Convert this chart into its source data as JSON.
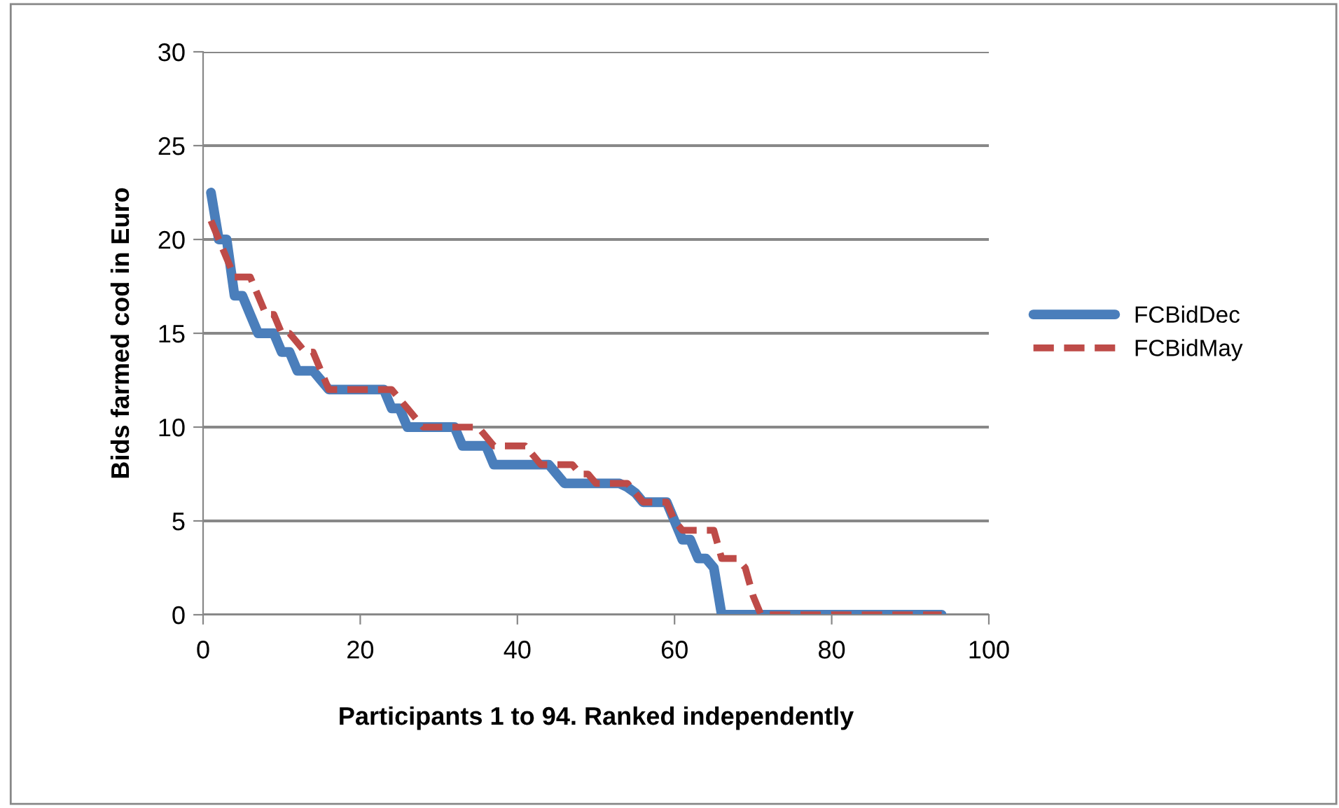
{
  "chart_data": {
    "type": "line",
    "xlabel": "Participants 1 to 94. Ranked independently",
    "ylabel": "Bids farmed cod in Euro",
    "xlim": [
      0,
      100
    ],
    "xticks": [
      0,
      20,
      40,
      60,
      80,
      100
    ],
    "ylim": [
      0,
      30
    ],
    "yticks": [
      0,
      5,
      10,
      15,
      20,
      25,
      30
    ],
    "grid": "y",
    "legend": "right",
    "marker": "none",
    "series": [
      {
        "name": "FCBidDec",
        "color": "#4a7ebb",
        "line_style": "solid",
        "x": [
          1,
          2,
          3,
          4,
          5,
          6,
          7,
          9,
          10,
          11,
          12,
          14,
          15,
          16,
          23,
          24,
          25,
          26,
          32,
          33,
          36,
          37,
          44,
          45,
          46,
          53,
          54,
          55,
          56,
          59,
          60,
          61,
          62,
          63,
          64,
          65,
          66,
          94
        ],
        "values": [
          22.5,
          20,
          20,
          17,
          17,
          16,
          15,
          15,
          14,
          14,
          13,
          13,
          12.5,
          12,
          12,
          11,
          11,
          10,
          10,
          9,
          9,
          8,
          8,
          7.5,
          7,
          7,
          6.8,
          6.5,
          6,
          6,
          5,
          4,
          4,
          3,
          3,
          2.5,
          0,
          0
        ]
      },
      {
        "name": "FCBidMay",
        "color": "#be4b48",
        "line_style": "dashed",
        "x": [
          1,
          2,
          3,
          4,
          6,
          7,
          8,
          9,
          10,
          11,
          12,
          13,
          14,
          15,
          16,
          23,
          24,
          26,
          27,
          28,
          35,
          36,
          37,
          41,
          42,
          43,
          47,
          48,
          49,
          50,
          54,
          55,
          56,
          59,
          60,
          61,
          65,
          66,
          68,
          69,
          70,
          71,
          94
        ],
        "values": [
          21,
          20,
          19,
          18,
          18,
          17,
          16,
          16,
          15,
          15,
          14.5,
          14,
          14,
          13,
          12,
          12,
          12,
          11,
          10.5,
          10,
          10,
          9.5,
          9,
          9,
          8.5,
          8,
          8,
          7.5,
          7.5,
          7,
          7,
          6.5,
          6,
          6,
          5,
          4.5,
          4.5,
          3,
          3,
          2.5,
          1,
          0,
          0
        ]
      }
    ]
  }
}
